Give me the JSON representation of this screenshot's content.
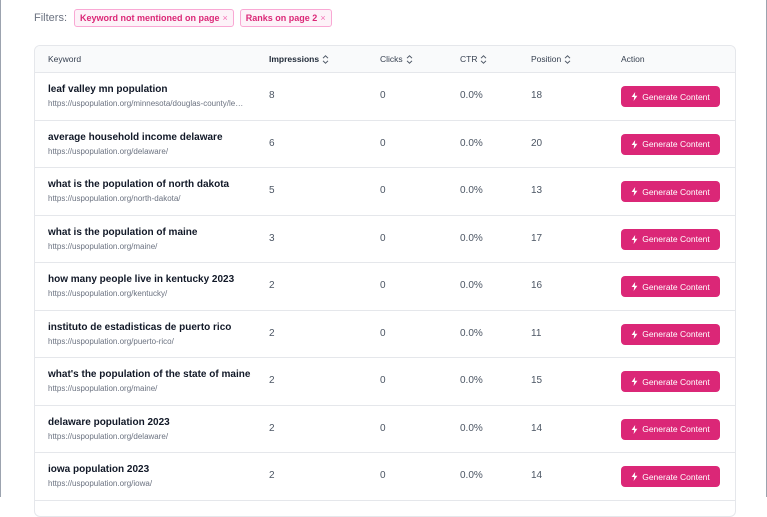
{
  "filters": {
    "label": "Filters:",
    "chips": [
      {
        "label": "Keyword not mentioned on page",
        "remove": "×"
      },
      {
        "label": "Ranks on page 2",
        "remove": "×"
      }
    ]
  },
  "columns": {
    "keyword": "Keyword",
    "impressions": "Impressions",
    "clicks": "Clicks",
    "ctr": "CTR",
    "position": "Position",
    "action": "Action"
  },
  "action_label": "Generate Content",
  "rows": [
    {
      "keyword": "leaf valley mn population",
      "url": "https://uspopulation.org/minnesota/douglas-county/leaf-valley/",
      "impressions": "8",
      "clicks": "0",
      "ctr": "0.0%",
      "position": "18"
    },
    {
      "keyword": "average household income delaware",
      "url": "https://uspopulation.org/delaware/",
      "impressions": "6",
      "clicks": "0",
      "ctr": "0.0%",
      "position": "20"
    },
    {
      "keyword": "what is the population of north dakota",
      "url": "https://uspopulation.org/north-dakota/",
      "impressions": "5",
      "clicks": "0",
      "ctr": "0.0%",
      "position": "13"
    },
    {
      "keyword": "what is the population of maine",
      "url": "https://uspopulation.org/maine/",
      "impressions": "3",
      "clicks": "0",
      "ctr": "0.0%",
      "position": "17"
    },
    {
      "keyword": "how many people live in kentucky 2023",
      "url": "https://uspopulation.org/kentucky/",
      "impressions": "2",
      "clicks": "0",
      "ctr": "0.0%",
      "position": "16"
    },
    {
      "keyword": "instituto de estadisticas de puerto rico",
      "url": "https://uspopulation.org/puerto-rico/",
      "impressions": "2",
      "clicks": "0",
      "ctr": "0.0%",
      "position": "11"
    },
    {
      "keyword": "what's the population of the state of maine",
      "url": "https://uspopulation.org/maine/",
      "impressions": "2",
      "clicks": "0",
      "ctr": "0.0%",
      "position": "15"
    },
    {
      "keyword": "delaware population 2023",
      "url": "https://uspopulation.org/delaware/",
      "impressions": "2",
      "clicks": "0",
      "ctr": "0.0%",
      "position": "14"
    },
    {
      "keyword": "iowa population 2023",
      "url": "https://uspopulation.org/iowa/",
      "impressions": "2",
      "clicks": "0",
      "ctr": "0.0%",
      "position": "14"
    }
  ],
  "colors": {
    "accent": "#db2777",
    "chip_bg": "#fdf2f8",
    "chip_border": "#f9a8d4"
  }
}
